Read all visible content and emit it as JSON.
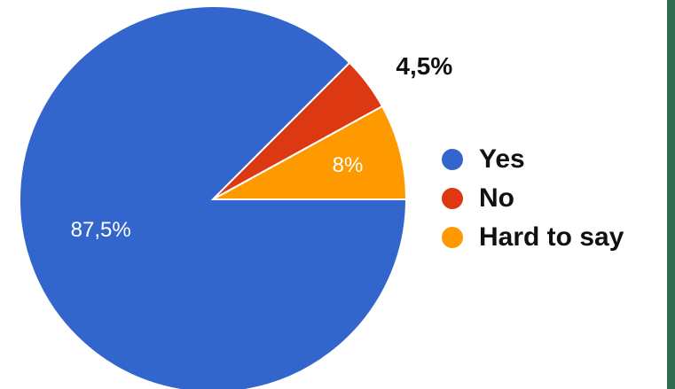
{
  "chart_data": {
    "type": "pie",
    "categories": [
      "Yes",
      "No",
      "Hard to say"
    ],
    "values": [
      87.5,
      4.5,
      8
    ],
    "data_labels": [
      "87,5%",
      "4,5%",
      "8%"
    ],
    "colors": [
      "#3366cc",
      "#dc3912",
      "#ff9900"
    ],
    "start_angle_deg": 0,
    "direction": "counterclockwise",
    "legend_position": "right"
  },
  "legend": {
    "items": [
      {
        "label": "Yes",
        "color": "#3366cc"
      },
      {
        "label": "No",
        "color": "#dc3912"
      },
      {
        "label": "Hard to say",
        "color": "#ff9900"
      }
    ]
  }
}
